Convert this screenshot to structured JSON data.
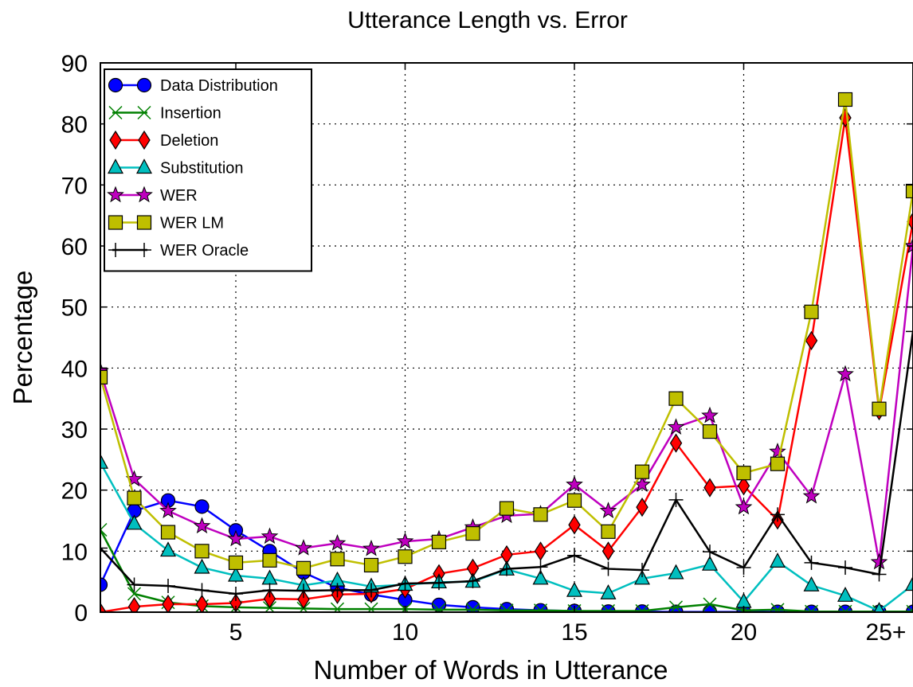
{
  "chart_data": {
    "type": "line",
    "title": "Utterance Length vs. Error",
    "xlabel": "Number of Words in Utterance",
    "ylabel": "Percentage",
    "xlim": [
      1,
      25
    ],
    "ylim": [
      0,
      90
    ],
    "x": [
      1,
      2,
      3,
      4,
      5,
      6,
      7,
      8,
      9,
      10,
      11,
      12,
      13,
      14,
      15,
      16,
      17,
      18,
      19,
      20,
      21,
      22,
      23,
      24,
      25
    ],
    "x_ticks": [
      {
        "value": 5,
        "label": "5"
      },
      {
        "value": 10,
        "label": "10"
      },
      {
        "value": 15,
        "label": "15"
      },
      {
        "value": 20,
        "label": "20"
      },
      {
        "value": 25,
        "label": "25+"
      }
    ],
    "y_ticks": [
      {
        "value": 0,
        "label": "0"
      },
      {
        "value": 10,
        "label": "10"
      },
      {
        "value": 20,
        "label": "20"
      },
      {
        "value": 30,
        "label": "30"
      },
      {
        "value": 40,
        "label": "40"
      },
      {
        "value": 50,
        "label": "50"
      },
      {
        "value": 60,
        "label": "60"
      },
      {
        "value": 70,
        "label": "70"
      },
      {
        "value": 80,
        "label": "80"
      },
      {
        "value": 90,
        "label": "90"
      }
    ],
    "grid": true,
    "legend_position": "top-left",
    "series": [
      {
        "name": "Data Distribution",
        "color": "#0000ff",
        "marker": "circle",
        "values": [
          4.5,
          16.6,
          18.3,
          17.3,
          13.4,
          10.0,
          6.5,
          4.0,
          2.9,
          2.0,
          1.2,
          0.8,
          0.5,
          0.3,
          0.2,
          0.1,
          0.1,
          0.05,
          0.05,
          0.05,
          0.05,
          0.05,
          0.05,
          0.05,
          0.05
        ]
      },
      {
        "name": "Insertion",
        "color": "#008000",
        "marker": "x",
        "values": [
          13.5,
          3.0,
          1.6,
          1.0,
          0.8,
          0.7,
          0.6,
          0.5,
          0.5,
          0.5,
          0.4,
          0.4,
          0.3,
          0.3,
          0.2,
          0.2,
          0.2,
          0.8,
          1.3,
          0.3,
          0.4,
          0.1,
          0.1,
          0.1,
          0.1
        ]
      },
      {
        "name": "Deletion",
        "color": "#ff0000",
        "marker": "diamond",
        "values": [
          0.0,
          0.9,
          1.3,
          1.3,
          1.5,
          2.2,
          2.1,
          2.9,
          3.0,
          3.8,
          6.3,
          7.2,
          9.4,
          10.0,
          14.3,
          10.0,
          17.2,
          27.7,
          20.4,
          20.7,
          15.1,
          44.5,
          81.0,
          33.0,
          64.0
        ]
      },
      {
        "name": "Substitution",
        "color": "#00bfbf",
        "marker": "triangle",
        "values": [
          24.5,
          14.5,
          10.1,
          7.3,
          6.0,
          5.5,
          4.4,
          5.2,
          4.2,
          4.5,
          4.9,
          5.0,
          7.0,
          5.5,
          3.5,
          3.1,
          5.5,
          6.4,
          7.8,
          1.7,
          8.3,
          4.4,
          2.7,
          0.2,
          4.5
        ]
      },
      {
        "name": "WER",
        "color": "#bf00bf",
        "marker": "star",
        "values": [
          39.5,
          21.8,
          16.6,
          14.1,
          12.0,
          12.4,
          10.5,
          11.3,
          10.4,
          11.6,
          12.0,
          13.9,
          15.8,
          16.1,
          20.9,
          16.6,
          20.9,
          30.3,
          32.2,
          17.2,
          26.3,
          19.0,
          39.0,
          8.2,
          60.0
        ]
      },
      {
        "name": "WER LM",
        "color": "#bfbf00",
        "marker": "square",
        "values": [
          38.5,
          18.7,
          13.1,
          10.0,
          8.1,
          8.5,
          7.2,
          8.7,
          7.7,
          9.1,
          11.5,
          12.9,
          17.0,
          16.0,
          18.3,
          13.2,
          23.0,
          35.0,
          29.6,
          22.8,
          24.3,
          49.2,
          84.0,
          33.3,
          69.0
        ]
      },
      {
        "name": "WER Oracle",
        "color": "#000000",
        "marker": "plus",
        "values": [
          10.5,
          4.5,
          4.3,
          3.6,
          3.0,
          3.6,
          3.5,
          3.6,
          3.6,
          4.7,
          4.8,
          5.1,
          7.1,
          7.4,
          9.3,
          7.1,
          6.9,
          18.4,
          9.9,
          7.3,
          16.0,
          8.1,
          7.3,
          6.2,
          46.0
        ]
      }
    ]
  }
}
